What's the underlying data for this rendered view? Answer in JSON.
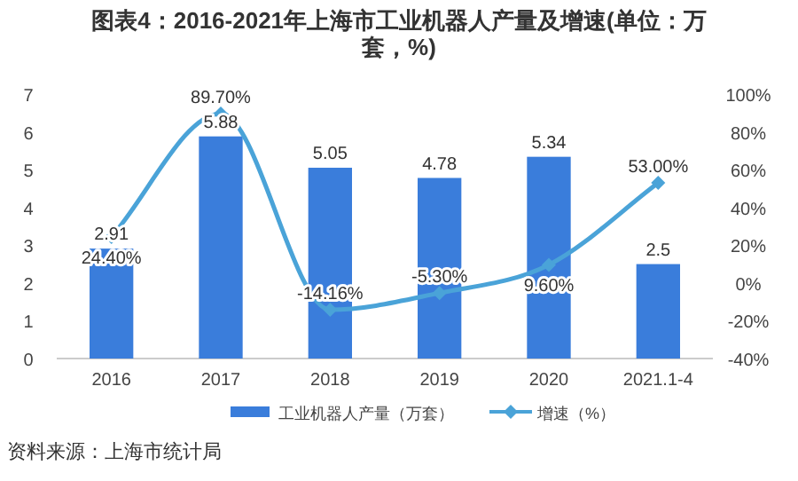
{
  "chart_data": {
    "type": "bar",
    "title": "图表4：2016-2021年上海市工业机器人产量及增速(单位：万套，%)",
    "categories": [
      "2016",
      "2017",
      "2018",
      "2019",
      "2020",
      "2021.1-4"
    ],
    "series": [
      {
        "name": "工业机器人产量（万套）",
        "color": "#3a7ddb",
        "values": [
          2.91,
          5.88,
          5.05,
          4.78,
          5.34,
          2.5
        ],
        "value_labels": [
          "2.91",
          "5.88",
          "5.05",
          "4.78",
          "5.34",
          "2.5"
        ]
      },
      {
        "name": "增速（%）",
        "type": "line",
        "axis": "y2",
        "color": "#4aa3d8",
        "marker": "diamond",
        "values": [
          24.4,
          89.7,
          -14.16,
          -5.3,
          9.6,
          53.0
        ],
        "value_labels": [
          "24.40%",
          "89.70%",
          "-14.16%",
          "-5.30%",
          "9.60%",
          "53.00%"
        ]
      }
    ],
    "ylim": [
      0,
      7
    ],
    "yticks": [
      0,
      1,
      2,
      3,
      4,
      5,
      6,
      7
    ],
    "y2lim": [
      -40,
      100
    ],
    "y2ticks": [
      {
        "value": -40,
        "label": "-40%"
      },
      {
        "value": -20,
        "label": "-20%"
      },
      {
        "value": 0,
        "label": "0%"
      },
      {
        "value": 20,
        "label": "20%"
      },
      {
        "value": 40,
        "label": "40%"
      },
      {
        "value": 60,
        "label": "60%"
      },
      {
        "value": 80,
        "label": "80%"
      },
      {
        "value": 100,
        "label": "100%"
      }
    ],
    "legend": "bottom",
    "annotations": [
      "资料来源：上海市统计局"
    ]
  }
}
